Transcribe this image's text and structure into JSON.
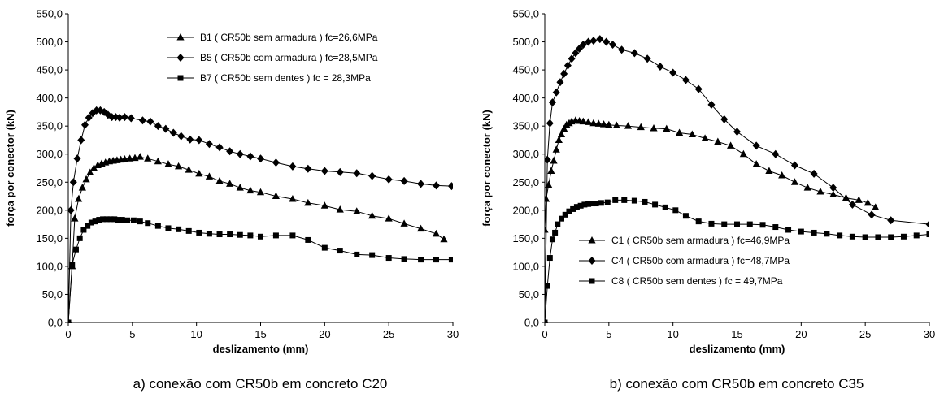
{
  "chart_data": [
    {
      "type": "line",
      "caption": "a) conexão com CR50b em concreto C20",
      "xlabel": "deslizamento (mm)",
      "ylabel": "força por conector (kN)",
      "xlim": [
        0,
        30
      ],
      "ylim": [
        0,
        550
      ],
      "xticks": [
        "0",
        "5",
        "10",
        "15",
        "20",
        "25",
        "30"
      ],
      "yticks": [
        "0,0",
        "50,0",
        "100,0",
        "150,0",
        "200,0",
        "250,0",
        "300,0",
        "350,0",
        "400,0",
        "450,0",
        "500,0",
        "550,0"
      ],
      "grid": false,
      "legend_position": "top-right",
      "series": [
        {
          "name": "B1 ( CR50b sem armadura ) fc=26,6MPa",
          "marker": "triangle",
          "x": [
            0,
            0.3,
            0.5,
            0.8,
            1.1,
            1.4,
            1.7,
            2.0,
            2.3,
            2.6,
            2.9,
            3.2,
            3.5,
            3.8,
            4.1,
            4.4,
            4.8,
            5.2,
            5.6,
            6.2,
            7.0,
            7.8,
            8.6,
            9.4,
            10.2,
            11.0,
            11.8,
            12.6,
            13.4,
            14.2,
            15.0,
            16.2,
            17.5,
            18.7,
            20.0,
            21.2,
            22.5,
            23.7,
            25.0,
            26.2,
            27.5,
            28.7,
            29.3
          ],
          "y": [
            0,
            100,
            185,
            220,
            240,
            255,
            267,
            275,
            280,
            283,
            285,
            287,
            288,
            289,
            290,
            291,
            292,
            293,
            295,
            292,
            287,
            282,
            278,
            272,
            265,
            260,
            252,
            247,
            240,
            235,
            232,
            225,
            220,
            213,
            208,
            201,
            198,
            190,
            185,
            176,
            167,
            158,
            148
          ]
        },
        {
          "name": "B5 ( CR50b com armadura ) fc=28,5MPa",
          "marker": "diamond",
          "x": [
            0,
            0.2,
            0.4,
            0.7,
            1.0,
            1.3,
            1.6,
            1.9,
            2.2,
            2.5,
            2.8,
            3.1,
            3.4,
            3.7,
            4.0,
            4.4,
            4.9,
            5.8,
            6.4,
            7.0,
            7.6,
            8.2,
            8.8,
            9.5,
            10.2,
            11.0,
            11.8,
            12.6,
            13.4,
            14.2,
            15.0,
            16.2,
            17.5,
            18.7,
            20.0,
            21.2,
            22.5,
            23.7,
            25.0,
            26.2,
            27.5,
            28.7,
            29.9
          ],
          "y": [
            0,
            200,
            250,
            292,
            325,
            352,
            365,
            373,
            378,
            378,
            375,
            370,
            366,
            366,
            365,
            366,
            364,
            360,
            358,
            350,
            345,
            338,
            332,
            326,
            325,
            318,
            312,
            305,
            300,
            296,
            292,
            285,
            278,
            274,
            270,
            268,
            266,
            261,
            255,
            252,
            247,
            244,
            243
          ]
        },
        {
          "name": "B7 ( CR50b sem dentes ) fc = 28,3MPa",
          "marker": "square",
          "x": [
            0,
            0.3,
            0.6,
            0.9,
            1.2,
            1.5,
            1.8,
            2.1,
            2.4,
            2.7,
            3.0,
            3.3,
            3.6,
            3.9,
            4.2,
            4.6,
            5.1,
            5.6,
            6.2,
            7.0,
            7.8,
            8.6,
            9.4,
            10.2,
            11.0,
            11.8,
            12.6,
            13.4,
            14.2,
            15.0,
            16.2,
            17.5,
            18.7,
            20.0,
            21.2,
            22.5,
            23.7,
            25.0,
            26.2,
            27.5,
            28.7,
            29.9
          ],
          "y": [
            0,
            103,
            130,
            150,
            165,
            172,
            178,
            180,
            183,
            184,
            184,
            184,
            184,
            183,
            183,
            182,
            182,
            180,
            177,
            172,
            168,
            166,
            163,
            160,
            158,
            157,
            157,
            156,
            155,
            153,
            155,
            155,
            147,
            133,
            128,
            121,
            120,
            115,
            113,
            112,
            112,
            112
          ]
        }
      ]
    },
    {
      "type": "line",
      "caption": "b) conexão com CR50b em concreto C35",
      "xlabel": "deslizamento (mm)",
      "ylabel": "força por conector (kN)",
      "xlim": [
        0,
        30
      ],
      "ylim": [
        0,
        550
      ],
      "xticks": [
        "0",
        "5",
        "10",
        "15",
        "20",
        "25",
        "30"
      ],
      "yticks": [
        "0,0",
        "50,0",
        "100,0",
        "150,0",
        "200,0",
        "250,0",
        "300,0",
        "350,0",
        "400,0",
        "450,0",
        "500,0",
        "550,0"
      ],
      "grid": false,
      "legend_position": "bottom-left",
      "series": [
        {
          "name": "C1 ( CR50b sem armadura ) fc=46,9MPa",
          "marker": "triangle",
          "x": [
            0,
            0.1,
            0.3,
            0.5,
            0.7,
            0.9,
            1.1,
            1.3,
            1.5,
            1.7,
            1.9,
            2.1,
            2.4,
            2.7,
            3.0,
            3.4,
            3.8,
            4.2,
            4.6,
            5.0,
            5.6,
            6.5,
            7.5,
            8.5,
            9.5,
            10.5,
            11.5,
            12.5,
            13.5,
            14.5,
            15.5,
            16.5,
            17.5,
            18.5,
            19.5,
            20.5,
            21.5,
            22.5,
            23.5,
            24.5,
            25.2,
            25.8
          ],
          "y": [
            165,
            220,
            245,
            270,
            288,
            308,
            325,
            335,
            345,
            352,
            355,
            358,
            360,
            359,
            358,
            357,
            355,
            354,
            353,
            352,
            351,
            350,
            348,
            346,
            345,
            338,
            335,
            328,
            322,
            315,
            300,
            282,
            270,
            262,
            250,
            240,
            233,
            228,
            222,
            218,
            213,
            205
          ]
        },
        {
          "name": "C4 ( CR50b com armadura ) fc=48,7MPa",
          "marker": "diamond",
          "x": [
            0,
            0.2,
            0.4,
            0.6,
            0.9,
            1.2,
            1.5,
            1.8,
            2.1,
            2.4,
            2.7,
            3.0,
            3.4,
            3.8,
            4.3,
            4.8,
            5.3,
            6.0,
            7.0,
            8.0,
            9.0,
            10.0,
            11.0,
            12.0,
            13.0,
            14.0,
            15.0,
            16.5,
            18.0,
            19.5,
            21.0,
            22.5,
            24.0,
            25.5,
            27.0,
            30.0
          ],
          "y": [
            0,
            290,
            355,
            392,
            410,
            428,
            443,
            458,
            470,
            480,
            488,
            495,
            500,
            502,
            505,
            500,
            495,
            486,
            480,
            470,
            456,
            445,
            432,
            416,
            388,
            362,
            340,
            315,
            300,
            280,
            265,
            240,
            210,
            192,
            182,
            175
          ]
        },
        {
          "name": "C8 ( CR50b sem dentes ) fc = 49,7MPa",
          "marker": "square",
          "x": [
            0,
            0.2,
            0.4,
            0.6,
            0.8,
            1.0,
            1.3,
            1.6,
            1.9,
            2.2,
            2.5,
            2.8,
            3.1,
            3.4,
            3.7,
            4.0,
            4.4,
            4.9,
            5.5,
            6.2,
            7.0,
            7.8,
            8.6,
            9.4,
            10.2,
            11.0,
            12.0,
            13.0,
            14.0,
            15.0,
            16.0,
            17.0,
            18.0,
            19.0,
            20.0,
            21.0,
            22.0,
            23.0,
            24.0,
            25.0,
            26.0,
            27.0,
            28.0,
            29.0,
            30.0
          ],
          "y": [
            0,
            65,
            115,
            148,
            160,
            175,
            185,
            192,
            198,
            202,
            206,
            208,
            210,
            211,
            212,
            212,
            213,
            214,
            218,
            218,
            217,
            215,
            210,
            205,
            200,
            190,
            180,
            176,
            175,
            175,
            175,
            174,
            170,
            165,
            162,
            160,
            158,
            155,
            153,
            152,
            152,
            152,
            153,
            155,
            157
          ]
        }
      ]
    }
  ]
}
